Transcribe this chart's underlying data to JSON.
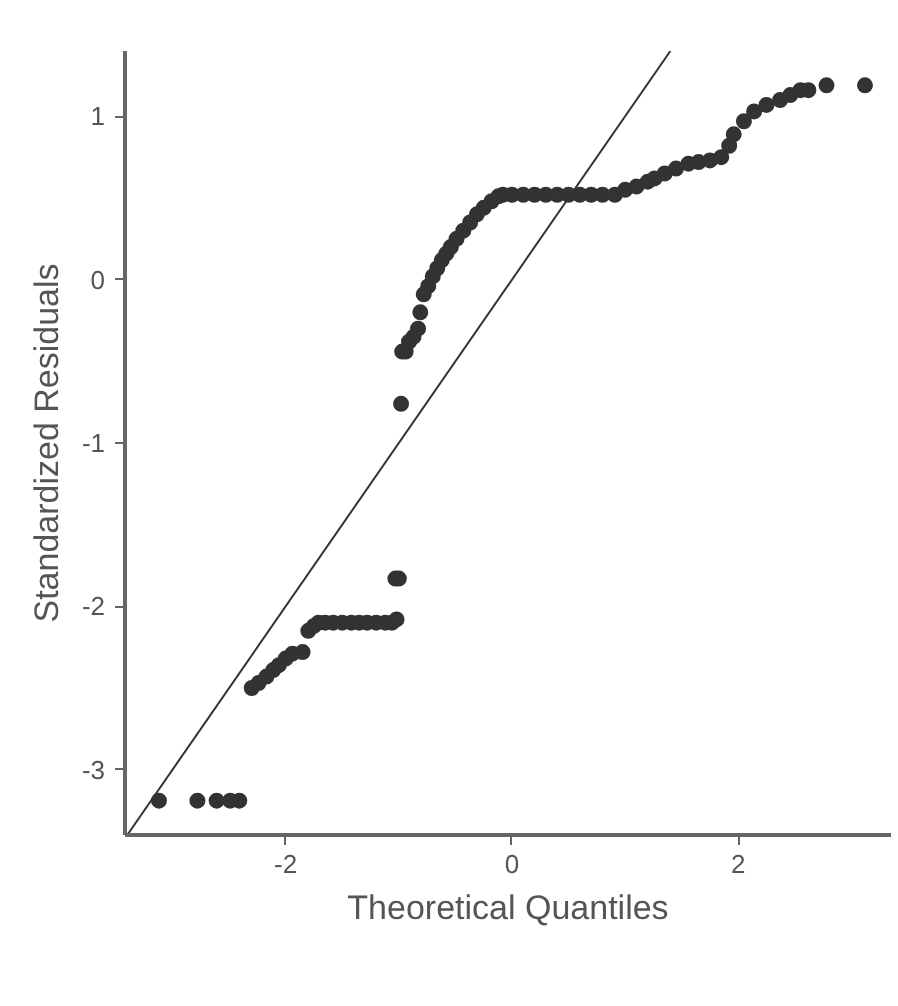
{
  "chart_data": {
    "type": "scatter",
    "xlabel": "Theoretical Quantiles",
    "ylabel": "Standardized Residuals",
    "xlim": [
      -3.42,
      3.35
    ],
    "ylim": [
      -3.4,
      1.4
    ],
    "xticks": [
      -2,
      0,
      2
    ],
    "yticks": [
      -3,
      -2,
      -1,
      0,
      1
    ],
    "grid": false,
    "series": [
      {
        "color": "#333333",
        "marker": "circle",
        "x": [
          -3.12,
          -2.78,
          -2.61,
          -2.49,
          -2.41,
          -2.3,
          -2.24,
          -2.17,
          -2.11,
          -2.06,
          -2.0,
          -1.94,
          -1.85,
          -1.8,
          -1.75,
          -1.71,
          -1.65,
          -1.58,
          -1.5,
          -1.42,
          -1.35,
          -1.28,
          -1.2,
          -1.12,
          -1.06,
          -1.02,
          -1.03,
          -1.0,
          -0.98,
          -0.97,
          -0.94,
          -0.91,
          -0.87,
          -0.83,
          -0.81,
          -0.78,
          -0.74,
          -0.7,
          -0.66,
          -0.62,
          -0.58,
          -0.54,
          -0.49,
          -0.43,
          -0.37,
          -0.31,
          -0.25,
          -0.18,
          -0.12,
          -0.08,
          0.0,
          0.1,
          0.2,
          0.3,
          0.4,
          0.5,
          0.6,
          0.7,
          0.8,
          0.91,
          1.0,
          1.1,
          1.2,
          1.26,
          1.35,
          1.45,
          1.56,
          1.65,
          1.75,
          1.85,
          1.92,
          1.96,
          2.05,
          2.14,
          2.25,
          2.37,
          2.46,
          2.55,
          2.62,
          2.78,
          3.12
        ],
        "values": [
          -3.19,
          -3.19,
          -3.19,
          -3.19,
          -3.19,
          -2.5,
          -2.47,
          -2.43,
          -2.39,
          -2.36,
          -2.32,
          -2.29,
          -2.28,
          -2.15,
          -2.12,
          -2.1,
          -2.1,
          -2.1,
          -2.1,
          -2.1,
          -2.1,
          -2.1,
          -2.1,
          -2.1,
          -2.1,
          -2.08,
          -1.83,
          -1.83,
          -0.76,
          -0.44,
          -0.44,
          -0.38,
          -0.35,
          -0.3,
          -0.2,
          -0.09,
          -0.04,
          0.02,
          0.07,
          0.12,
          0.16,
          0.2,
          0.25,
          0.3,
          0.35,
          0.4,
          0.44,
          0.48,
          0.51,
          0.52,
          0.52,
          0.52,
          0.52,
          0.52,
          0.52,
          0.52,
          0.52,
          0.52,
          0.52,
          0.52,
          0.55,
          0.57,
          0.6,
          0.62,
          0.65,
          0.68,
          0.71,
          0.72,
          0.73,
          0.75,
          0.82,
          0.89,
          0.97,
          1.03,
          1.07,
          1.1,
          1.13,
          1.16,
          1.16,
          1.19,
          1.19
        ]
      },
      {
        "type": "line",
        "color": "#333333",
        "x": [
          -3.4,
          1.4
        ],
        "values": [
          -3.4,
          1.4
        ]
      }
    ]
  }
}
